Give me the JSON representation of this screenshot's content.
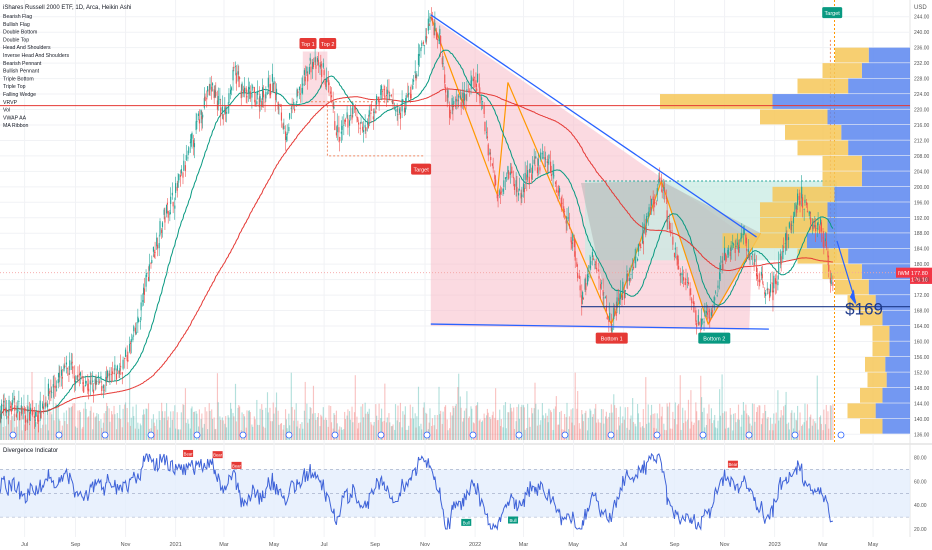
{
  "header": {
    "title": "iShares Russell 2000 ETF, 1D, Arca, Heikin Ashi"
  },
  "indicators": [
    "Bearish Flag",
    "Bullish Flag",
    "Double Bottom",
    "Double Top",
    "Head And Shoulders",
    "Inverse Head And Shoulders",
    "Bearish Pennant",
    "Bullish Pennant",
    "Triple Bottom",
    "Triple Top",
    "Falling Wedge",
    "VRVP",
    "Vol",
    "VWAP AA",
    "MA Ribbon"
  ],
  "colors": {
    "up": "#26a69a",
    "down": "#ef5350",
    "blue_line": "#2962ff",
    "ma_green": "#089981",
    "ma_red": "#e53935",
    "ma_orange": "#ff9800",
    "pattern_fill": "#f8bbc8",
    "grey_fill": "#b0b0b0",
    "teal_fill": "#c8ebe3",
    "vp_blue": "#5b86f0",
    "vp_yellow": "#f6c758",
    "rsi_line": "#3f63d8",
    "rsi_band": "#e3eefc",
    "price_badge": "#f23645"
  },
  "price_axis": {
    "unit": "USD",
    "ticks": [
      "244.00",
      "240.00",
      "236.00",
      "232.00",
      "228.00",
      "224.00",
      "220.00",
      "216.00",
      "212.00",
      "208.00",
      "204.00",
      "200.00",
      "196.00",
      "192.00",
      "188.00",
      "184.00",
      "180.00",
      "176.00",
      "172.00",
      "168.00",
      "164.00",
      "160.00",
      "156.00",
      "152.00",
      "148.00",
      "144.00",
      "140.00",
      "136.00"
    ],
    "badges": [
      "177.80",
      "176.18"
    ],
    "badge_label": "IWM"
  },
  "rsi_axis": {
    "ticks": [
      "80.00",
      "60.00",
      "40.00",
      "20.00"
    ]
  },
  "time_axis": [
    "Jul",
    "Sep",
    "Nov",
    "2021",
    "Mar",
    "May",
    "Jul",
    "Sep",
    "Nov",
    "2022",
    "Mar",
    "May",
    "Jul",
    "Sep",
    "Nov",
    "2023",
    "Mar",
    "May"
  ],
  "annotations": {
    "top1": "Top 1",
    "top2": "Top 2",
    "target_low": "Target",
    "target_high": "Target",
    "bottom1": "Bottom 1",
    "bottom2": "Bottom 2",
    "price_target": "$169"
  },
  "rsi": {
    "label": "Divergence Indicator",
    "bear_label": "Bear",
    "bull_label": "Bull"
  },
  "chart_data": {
    "type": "candlestick",
    "title": "iShares Russell 2000 ETF, 1D, Arca, Heikin Ashi",
    "ylim": [
      134,
      246
    ],
    "x_range": [
      "2020-06-01",
      "2023-06-15"
    ],
    "x_ticks": [
      "Jul",
      "Sep",
      "Nov",
      "2021",
      "Mar",
      "May",
      "Jul",
      "Sep",
      "Nov",
      "2022",
      "Mar",
      "May",
      "Jul",
      "Sep",
      "Nov",
      "2023",
      "Mar",
      "May"
    ],
    "price_path": [
      [
        "2020-06-01",
        142
      ],
      [
        "2020-06-20",
        143
      ],
      [
        "2020-07-15",
        140
      ],
      [
        "2020-08-01",
        147
      ],
      [
        "2020-08-25",
        153
      ],
      [
        "2020-09-20",
        148
      ],
      [
        "2020-10-15",
        150
      ],
      [
        "2020-11-01",
        155
      ],
      [
        "2020-11-15",
        163
      ],
      [
        "2020-12-01",
        180
      ],
      [
        "2020-12-20",
        193
      ],
      [
        "2021-01-05",
        200
      ],
      [
        "2021-01-20",
        210
      ],
      [
        "2021-02-05",
        222
      ],
      [
        "2021-02-15",
        226
      ],
      [
        "2021-03-01",
        218
      ],
      [
        "2021-03-15",
        230
      ],
      [
        "2021-03-25",
        224
      ],
      [
        "2021-04-15",
        223
      ],
      [
        "2021-04-30",
        227
      ],
      [
        "2021-05-15",
        214
      ],
      [
        "2021-06-01",
        224
      ],
      [
        "2021-06-15",
        232
      ],
      [
        "2021-07-01",
        230
      ],
      [
        "2021-07-20",
        212
      ],
      [
        "2021-08-05",
        220
      ],
      [
        "2021-08-20",
        214
      ],
      [
        "2021-09-10",
        225
      ],
      [
        "2021-09-30",
        219
      ],
      [
        "2021-10-15",
        224
      ],
      [
        "2021-11-08",
        244
      ],
      [
        "2021-11-20",
        238
      ],
      [
        "2021-12-01",
        220
      ],
      [
        "2021-12-20",
        224
      ],
      [
        "2022-01-05",
        227
      ],
      [
        "2022-01-28",
        198
      ],
      [
        "2022-02-10",
        205
      ],
      [
        "2022-02-25",
        198
      ],
      [
        "2022-03-10",
        204
      ],
      [
        "2022-03-29",
        208
      ],
      [
        "2022-04-15",
        198
      ],
      [
        "2022-05-01",
        186
      ],
      [
        "2022-05-12",
        171
      ],
      [
        "2022-05-25",
        182
      ],
      [
        "2022-06-16",
        165
      ],
      [
        "2022-07-01",
        173
      ],
      [
        "2022-07-25",
        187
      ],
      [
        "2022-08-16",
        202
      ],
      [
        "2022-09-01",
        183
      ],
      [
        "2022-09-30",
        165
      ],
      [
        "2022-10-15",
        166
      ],
      [
        "2022-11-01",
        182
      ],
      [
        "2022-11-25",
        187
      ],
      [
        "2022-12-15",
        176
      ],
      [
        "2022-12-30",
        173
      ],
      [
        "2023-01-15",
        186
      ],
      [
        "2023-02-02",
        198
      ],
      [
        "2023-02-20",
        191
      ],
      [
        "2023-03-01",
        189
      ],
      [
        "2023-03-13",
        174
      ]
    ],
    "support_price": 169,
    "price_target": 169,
    "current_price": 177.8,
    "secondary_price": 176.18,
    "resistance_price": 221,
    "rsi_levels": [
      70,
      50,
      30
    ],
    "rsi_ylim": [
      15,
      88
    ]
  }
}
